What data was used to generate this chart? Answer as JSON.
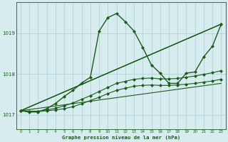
{
  "title": "Graphe pression niveau de la mer (hPa)",
  "background_color": "#d6ecee",
  "grid_color": "#aecdd2",
  "line_color": "#1a5c1a",
  "x_labels": [
    "0",
    "1",
    "2",
    "3",
    "4",
    "5",
    "6",
    "7",
    "8",
    "9",
    "10",
    "11",
    "12",
    "13",
    "14",
    "15",
    "16",
    "17",
    "18",
    "19",
    "20",
    "21",
    "22",
    "23"
  ],
  "yticks": [
    1017,
    1018,
    1019
  ],
  "ylim": [
    1016.65,
    1019.75
  ],
  "xlim": [
    -0.5,
    23.5
  ],
  "lines": [
    {
      "x": [
        0,
        1,
        2,
        3,
        4,
        5,
        6,
        7,
        8,
        9,
        10,
        11,
        12,
        13,
        14,
        15,
        16,
        17,
        18,
        19,
        20,
        21,
        22,
        23
      ],
      "y": [
        1017.1,
        1017.07,
        1017.07,
        1017.15,
        1017.28,
        1017.45,
        1017.6,
        1017.78,
        1017.92,
        1019.05,
        1019.38,
        1019.48,
        1019.28,
        1019.05,
        1018.65,
        1018.22,
        1018.02,
        1017.77,
        1017.77,
        1018.02,
        1018.05,
        1018.42,
        1018.68,
        1019.22
      ],
      "style": "-",
      "marker": "D",
      "markersize": 2.0,
      "linewidth": 1.0
    },
    {
      "x": [
        0,
        23
      ],
      "y": [
        1017.1,
        1019.22
      ],
      "style": "-",
      "marker": "D",
      "markersize": 2.0,
      "linewidth": 0.9
    },
    {
      "x": [
        0,
        23
      ],
      "y": [
        1017.1,
        1019.22
      ],
      "style": "-",
      "marker": null,
      "markersize": 0,
      "linewidth": 0.7
    },
    {
      "x": [
        0,
        1,
        2,
        3,
        4,
        5,
        6,
        7,
        8,
        9,
        10,
        11,
        12,
        13,
        14,
        15,
        16,
        17,
        18,
        19,
        20,
        21,
        22,
        23
      ],
      "y": [
        1017.1,
        1017.08,
        1017.08,
        1017.1,
        1017.12,
        1017.15,
        1017.2,
        1017.27,
        1017.35,
        1017.43,
        1017.52,
        1017.6,
        1017.65,
        1017.7,
        1017.72,
        1017.73,
        1017.72,
        1017.72,
        1017.73,
        1017.75,
        1017.77,
        1017.8,
        1017.83,
        1017.87
      ],
      "style": "-",
      "marker": "D",
      "markersize": 2.0,
      "linewidth": 0.8
    },
    {
      "x": [
        0,
        1,
        2,
        3,
        4,
        5,
        6,
        7,
        8,
        9,
        10,
        11,
        12,
        13,
        14,
        15,
        16,
        17,
        18,
        19,
        20,
        21,
        22,
        23
      ],
      "y": [
        1017.1,
        1017.09,
        1017.09,
        1017.12,
        1017.16,
        1017.22,
        1017.29,
        1017.38,
        1017.47,
        1017.57,
        1017.67,
        1017.77,
        1017.82,
        1017.87,
        1017.89,
        1017.9,
        1017.88,
        1017.88,
        1017.89,
        1017.92,
        1017.95,
        1017.99,
        1018.03,
        1018.08
      ],
      "style": "-",
      "marker": "D",
      "markersize": 2.0,
      "linewidth": 0.8
    }
  ]
}
